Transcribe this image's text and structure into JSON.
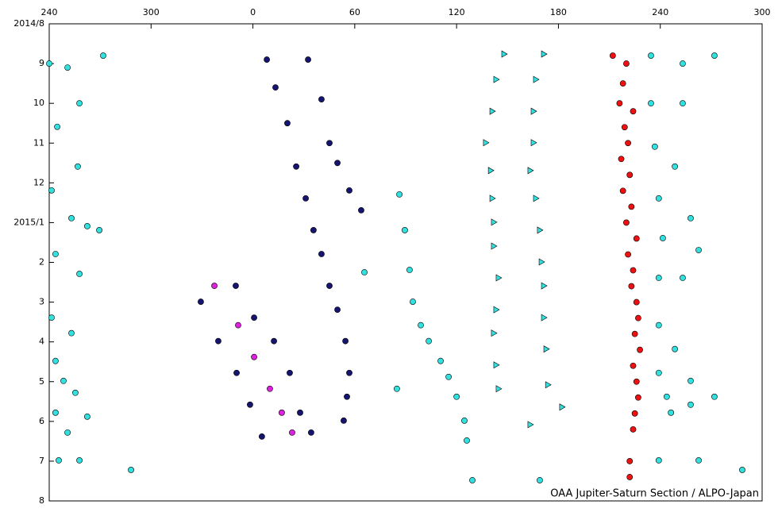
{
  "chart_data": {
    "type": "scatter",
    "credit": "OAA Jupiter-Saturn Section / ALPO-Japan",
    "xlim": [
      240,
      660
    ],
    "xticks": [
      240,
      300,
      {
        "value": 360,
        "label": "0"
      },
      {
        "value": 420,
        "label": "60"
      },
      {
        "value": 480,
        "label": "120"
      },
      {
        "value": 540,
        "label": "180"
      },
      {
        "value": 600,
        "label": "240"
      },
      {
        "value": 660,
        "label": "300"
      }
    ],
    "ylim": [
      0,
      12
    ],
    "y_inverted": true,
    "yticks": [
      {
        "value": 0,
        "label": "2014/8"
      },
      {
        "value": 1,
        "label": "9"
      },
      {
        "value": 2,
        "label": "10"
      },
      {
        "value": 3,
        "label": "11"
      },
      {
        "value": 4,
        "label": "12"
      },
      {
        "value": 5,
        "label": "2015/1"
      },
      {
        "value": 6,
        "label": "2"
      },
      {
        "value": 7,
        "label": "3"
      },
      {
        "value": 8,
        "label": "4"
      },
      {
        "value": 9,
        "label": "5"
      },
      {
        "value": 10,
        "label": "6"
      },
      {
        "value": 11,
        "label": "7"
      },
      {
        "value": 12,
        "label": "8"
      }
    ],
    "series": [
      {
        "color": "#33e0e0",
        "marker": "circle",
        "x": [
          240.0,
          250.8,
          257.8,
          244.7,
          256.8,
          241.4,
          253.1,
          262.4,
          269.5,
          243.7,
          257.8,
          241.4,
          253.1,
          243.7,
          248.4,
          255.4,
          243.7,
          262.4,
          250.8,
          245.6,
          257.8,
          288.2,
          271.8,
          594.5,
          613.2,
          631.9,
          594.5,
          613.2,
          596.8,
          608.6,
          599.1,
          617.9,
          601.5,
          622.6,
          599.1,
          613.2,
          599.1,
          608.6,
          599.1,
          617.9,
          603.8,
          631.9,
          606.3,
          617.9,
          599.1,
          622.6,
          648.3,
          489.3,
          529.0,
          444.8,
          425.7,
          446.3,
          449.5,
          452.3,
          454.2,
          458.9,
          463.6,
          470.6,
          475.3,
          480.0,
          484.6,
          486.0
        ],
        "y": [
          1.0,
          1.1,
          2.0,
          2.59,
          3.59,
          4.19,
          4.89,
          5.09,
          5.19,
          5.79,
          6.29,
          7.39,
          7.78,
          8.48,
          8.98,
          9.28,
          9.78,
          9.88,
          10.28,
          10.98,
          10.98,
          11.22,
          0.8,
          0.8,
          1.0,
          0.8,
          2.0,
          2.0,
          3.09,
          3.59,
          4.39,
          4.89,
          5.39,
          5.69,
          6.39,
          6.39,
          7.58,
          8.18,
          8.78,
          8.98,
          9.38,
          9.38,
          9.78,
          9.58,
          10.98,
          10.98,
          11.22,
          11.48,
          11.48,
          9.18,
          6.25,
          4.29,
          5.19,
          6.19,
          6.99,
          7.58,
          7.98,
          8.48,
          8.88,
          9.38,
          9.98,
          10.48
        ]
      },
      {
        "color": "#151570",
        "marker": "circle",
        "x": [
          368.2,
          373.3,
          380.3,
          385.5,
          391.1,
          395.7,
          400.4,
          405.1,
          409.8,
          414.5,
          416.8,
          415.4,
          413.5,
          392.5,
          400.4,
          405.1,
          409.8,
          416.8,
          423.8,
          329.3,
          339.6,
          350.4,
          358.3,
          365.3,
          349.9,
          360.7,
          372.4,
          381.7,
          387.8,
          394.3
        ],
        "y": [
          0.9,
          1.6,
          2.5,
          3.59,
          4.39,
          5.19,
          5.79,
          6.59,
          7.19,
          7.98,
          8.78,
          9.38,
          9.98,
          0.9,
          1.9,
          3.0,
          3.5,
          4.19,
          4.69,
          6.99,
          7.98,
          8.78,
          9.58,
          10.38,
          6.59,
          7.39,
          7.98,
          8.78,
          9.78,
          10.28
        ]
      },
      {
        "color": "#dd22dd",
        "marker": "circle",
        "x": [
          337.3,
          351.3,
          360.7,
          370.0,
          377.0,
          383.1
        ],
        "y": [
          6.59,
          7.58,
          8.38,
          9.18,
          9.78,
          10.28
        ]
      },
      {
        "color": "#33e0e0",
        "marker": "triangle",
        "x": [
          508.0,
          503.3,
          501.0,
          497.2,
          500.1,
          501.0,
          501.9,
          501.9,
          504.7,
          503.3,
          501.9,
          503.3,
          504.7,
          531.4,
          526.7,
          525.3,
          525.3,
          523.4,
          526.7,
          529.0,
          530.0,
          531.4,
          531.4,
          532.8,
          533.8,
          542.1,
          523.4
        ],
        "y": [
          0.76,
          1.4,
          2.2,
          2.99,
          3.69,
          4.39,
          4.99,
          5.59,
          6.39,
          7.19,
          7.78,
          8.58,
          9.18,
          0.76,
          1.4,
          2.2,
          2.99,
          3.69,
          4.39,
          5.19,
          5.99,
          6.59,
          7.39,
          8.18,
          9.08,
          9.64,
          10.08
        ]
      },
      {
        "color": "#ee1111",
        "marker": "circle",
        "x": [
          572,
          580,
          578,
          576,
          584,
          579,
          581,
          577,
          582,
          578,
          583,
          580,
          586,
          581,
          584,
          583,
          586,
          587,
          585,
          588,
          584,
          586,
          587,
          585,
          584,
          582,
          582
        ],
        "y": [
          0.8,
          1.0,
          1.5,
          2.0,
          2.2,
          2.6,
          3.0,
          3.4,
          3.8,
          4.2,
          4.6,
          5.0,
          5.4,
          5.8,
          6.2,
          6.6,
          7.0,
          7.4,
          7.8,
          8.2,
          8.6,
          9.0,
          9.4,
          9.8,
          10.2,
          11.0,
          11.4
        ]
      }
    ]
  }
}
